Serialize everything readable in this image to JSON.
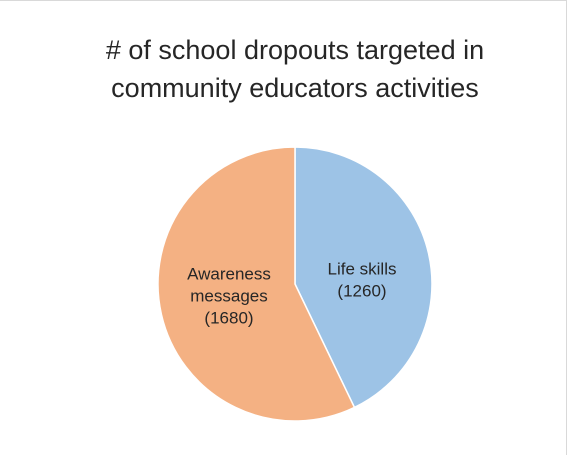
{
  "chart_data": {
    "type": "pie",
    "title_lines": [
      "# of school dropouts targeted in",
      "community educators activities"
    ],
    "slices": [
      {
        "label_lines": [
          "Life skills",
          "(1260)"
        ],
        "name": "Life skills",
        "value": 1260,
        "color": "#9dc3e6"
      },
      {
        "label_lines": [
          "Awareness",
          "messages",
          "(1680)"
        ],
        "name": "Awareness messages",
        "value": 1680,
        "color": "#f4b183"
      }
    ],
    "start_angle_deg": 0,
    "direction": "clockwise",
    "legend": "none",
    "data_labels": "inside"
  }
}
